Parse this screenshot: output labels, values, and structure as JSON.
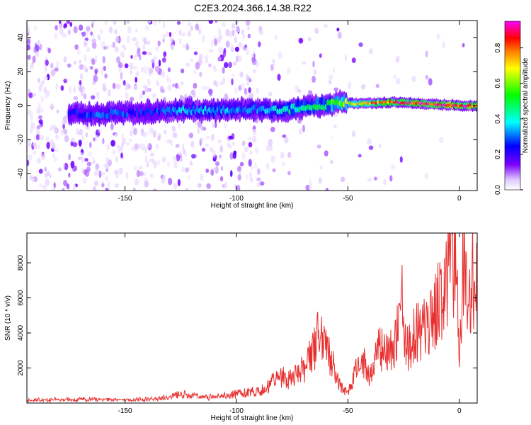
{
  "figure": {
    "title": "C2E3.2024.366.14.38.R22"
  },
  "chart_data": [
    {
      "type": "heatmap",
      "xlabel": "Height of straight line (km)",
      "ylabel": "Frequency (Hz)",
      "xlim": [
        -194,
        8
      ],
      "ylim": [
        -50,
        50
      ],
      "xticks": [
        -150,
        -100,
        -50,
        0
      ],
      "yticks": [
        -40,
        -20,
        0,
        20,
        40
      ],
      "colorbar": {
        "label": "Normalized spectral amplitude",
        "range": [
          0.0,
          0.95
        ],
        "ticks": [
          0.0,
          0.2,
          0.4,
          0.6,
          0.8
        ],
        "colormap": [
          "#ffffff",
          "#d9b8ff",
          "#7b00ff",
          "#0000ff",
          "#00ffff",
          "#00ff00",
          "#ffff00",
          "#ff8000",
          "#ff0000",
          "#ff00ff"
        ]
      },
      "ridge": {
        "x": [
          -175,
          -160,
          -140,
          -125,
          -110,
          -95,
          -80,
          -70,
          -60,
          -55,
          -45,
          -30,
          -15,
          0,
          8
        ],
        "y": [
          -5,
          -5,
          -4,
          -3,
          -3,
          -2,
          -3,
          -1,
          0,
          2,
          1,
          2,
          1,
          0,
          0
        ],
        "amplitude": [
          0.25,
          0.3,
          0.25,
          0.35,
          0.35,
          0.3,
          0.4,
          0.45,
          0.5,
          0.55,
          0.7,
          0.85,
          0.9,
          0.9,
          0.85
        ]
      },
      "grid": false
    },
    {
      "type": "line",
      "xlabel": "Height of straight line (km)",
      "ylabel": "SNR (10 * v/v)",
      "xlim": [
        -194,
        8
      ],
      "ylim": [
        0,
        9700
      ],
      "xticks": [
        -150,
        -100,
        -50,
        0
      ],
      "yticks": [
        2000,
        4000,
        6000,
        8000
      ],
      "series": [
        {
          "color": "#e83030",
          "x": [
            -194,
            -180,
            -165,
            -150,
            -135,
            -125,
            -115,
            -105,
            -95,
            -88,
            -80,
            -75,
            -70,
            -66,
            -63,
            -60,
            -57,
            -54,
            -50,
            -46,
            -43,
            -40,
            -36,
            -32,
            -28,
            -26,
            -24,
            -20,
            -16,
            -12,
            -8,
            -5,
            -3,
            -1,
            0,
            1,
            2,
            4,
            6,
            8
          ],
          "y": [
            150,
            200,
            220,
            180,
            250,
            500,
            350,
            420,
            600,
            800,
            1500,
            1300,
            2000,
            2800,
            3800,
            3500,
            2400,
            1100,
            500,
            1900,
            2400,
            1700,
            3200,
            2600,
            3800,
            5900,
            3000,
            3900,
            4200,
            4600,
            6200,
            7500,
            9300,
            6800,
            1500,
            5500,
            9500,
            5000,
            7200,
            6200
          ]
        }
      ],
      "grid": false
    }
  ]
}
